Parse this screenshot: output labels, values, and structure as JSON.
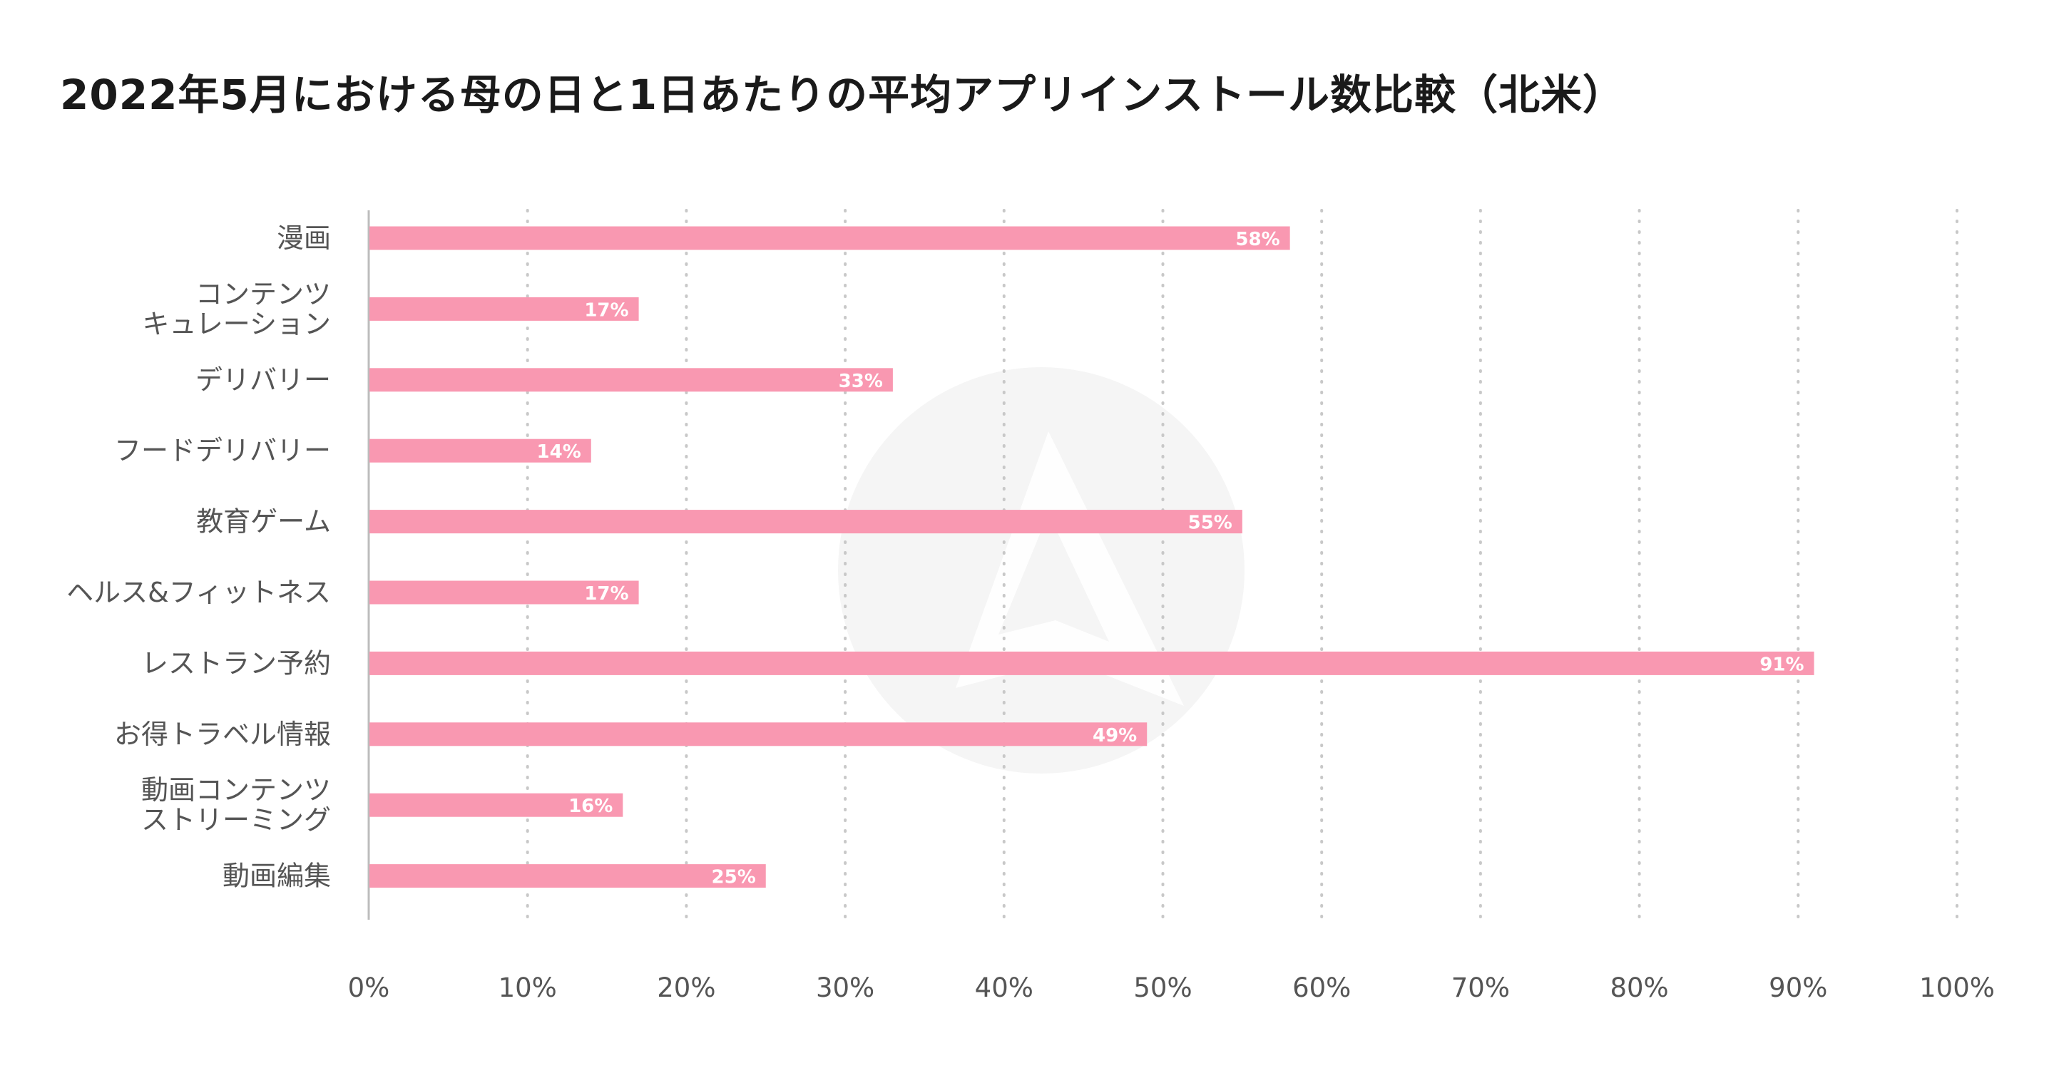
{
  "chart_data": {
    "type": "bar",
    "orientation": "horizontal",
    "title": "2022年5月における母の日と1日あたりの平均アプリインストール数比較（北米）",
    "xlabel": "",
    "ylabel": "",
    "categories": [
      [
        "漫画"
      ],
      [
        "コンテンツ",
        "キュレーション"
      ],
      [
        "デリバリー"
      ],
      [
        "フードデリバリー"
      ],
      [
        "教育ゲーム"
      ],
      [
        "ヘルス&フィットネス"
      ],
      [
        "レストラン予約"
      ],
      [
        "お得トラベル情報"
      ],
      [
        "動画コンテンツ",
        "ストリーミング"
      ],
      [
        "動画編集"
      ]
    ],
    "values": [
      58,
      17,
      33,
      14,
      55,
      17,
      91,
      49,
      16,
      25
    ],
    "value_labels": [
      "58%",
      "17%",
      "33%",
      "14%",
      "55%",
      "17%",
      "91%",
      "49%",
      "16%",
      "25%"
    ],
    "xlim": [
      0,
      100
    ],
    "x_ticks": [
      0,
      10,
      20,
      30,
      40,
      50,
      60,
      70,
      80,
      90,
      100
    ],
    "x_tick_labels": [
      "0%",
      "10%",
      "20%",
      "30%",
      "40%",
      "50%",
      "60%",
      "70%",
      "80%",
      "90%",
      "100%"
    ],
    "grid": "vertical dotted",
    "legend": "none",
    "colors": {
      "bar": "#f998b1",
      "bar_label": "#ffffff",
      "grid": "#c8c8c8",
      "axis": "#bdbdbd",
      "text": "#555555",
      "title": "#1a1a1a",
      "watermark": "#f4f4f4"
    }
  }
}
